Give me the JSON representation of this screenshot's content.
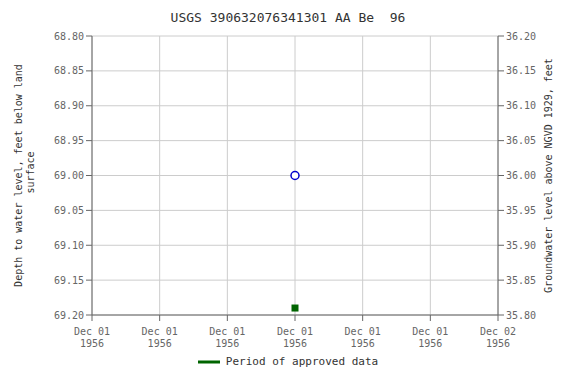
{
  "chart_data": {
    "type": "scatter",
    "title": "USGS 390632076341301 AA Be  96",
    "categories": [
      "Dec 01\n1956",
      "Dec 01\n1956",
      "Dec 01\n1956",
      "Dec 01\n1956",
      "Dec 01\n1956",
      "Dec 01\n1956",
      "Dec 02\n1956"
    ],
    "y_label": "Depth to water level, feet below land\n surface",
    "y2_label": "Groundwater level above NGVD 1929, feet",
    "ylim": [
      69.2,
      68.8
    ],
    "yticks": [
      {
        "value": 68.8,
        "label": "68.80"
      },
      68.85,
      {
        "value": 68.9,
        "label": "68.90"
      },
      68.95,
      {
        "value": 69.0,
        "label": "69.00"
      },
      69.05,
      {
        "value": 69.1,
        "label": "69.10"
      },
      69.15,
      {
        "value": 69.2,
        "label": "69.20"
      }
    ],
    "y2lim": [
      35.8,
      36.2
    ],
    "y2ticks": [
      {
        "value": 36.2,
        "label": "36.20"
      },
      36.15,
      {
        "value": 36.1,
        "label": "36.10"
      },
      36.05,
      {
        "value": 36.0,
        "label": "36.00"
      },
      35.95,
      {
        "value": 35.9,
        "label": "35.90"
      },
      35.85,
      {
        "value": 35.8,
        "label": "35.80"
      }
    ],
    "grid": true,
    "series": [
      {
        "color": "#0000cc",
        "marker": "circle",
        "values": [
          null,
          null,
          null,
          69,
          null,
          null,
          null
        ]
      },
      {
        "name": "Period of approved data",
        "color": "#006400",
        "marker": "square",
        "values": [
          null,
          null,
          null,
          69.19,
          null,
          null,
          null
        ]
      }
    ]
  }
}
